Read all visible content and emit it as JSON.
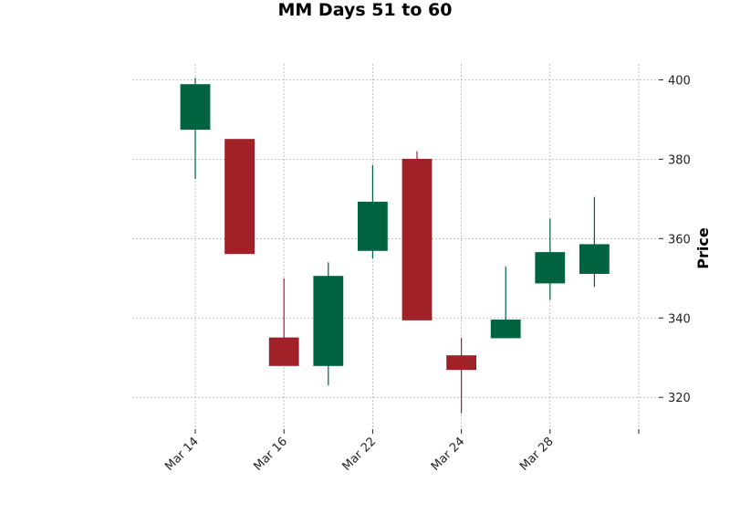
{
  "chart_data": {
    "type": "candlestick",
    "title": "MM Days 51 to 60",
    "ylabel": "Price",
    "ylim": [
      312,
      404
    ],
    "yticks": [
      320,
      340,
      360,
      380,
      400
    ],
    "xticks": [
      {
        "index": 0,
        "label": "Mar 14"
      },
      {
        "index": 2,
        "label": "Mar 16"
      },
      {
        "index": 4,
        "label": "Mar 22"
      },
      {
        "index": 6,
        "label": "Mar 24"
      },
      {
        "index": 8,
        "label": "Mar 28"
      },
      {
        "index": 10,
        "label": ""
      }
    ],
    "grid": true,
    "up_color": "#006340",
    "down_color": "#a02128",
    "candles": [
      {
        "open": 387.5,
        "high": 400.5,
        "low": 375.0,
        "close": 398.8
      },
      {
        "open": 385.0,
        "high": 385.0,
        "low": 356.2,
        "close": 356.2
      },
      {
        "open": 335.0,
        "high": 350.0,
        "low": 328.0,
        "close": 328.0
      },
      {
        "open": 328.0,
        "high": 354.0,
        "low": 323.0,
        "close": 350.5
      },
      {
        "open": 357.0,
        "high": 378.5,
        "low": 355.0,
        "close": 369.2
      },
      {
        "open": 380.0,
        "high": 382.0,
        "low": 339.5,
        "close": 339.5
      },
      {
        "open": 330.5,
        "high": 335.0,
        "low": 316.0,
        "close": 327.0
      },
      {
        "open": 335.0,
        "high": 353.0,
        "low": 335.0,
        "close": 339.5
      },
      {
        "open": 348.8,
        "high": 365.0,
        "low": 344.5,
        "close": 356.5
      },
      {
        "open": 351.2,
        "high": 370.5,
        "low": 347.8,
        "close": 358.5
      }
    ]
  }
}
